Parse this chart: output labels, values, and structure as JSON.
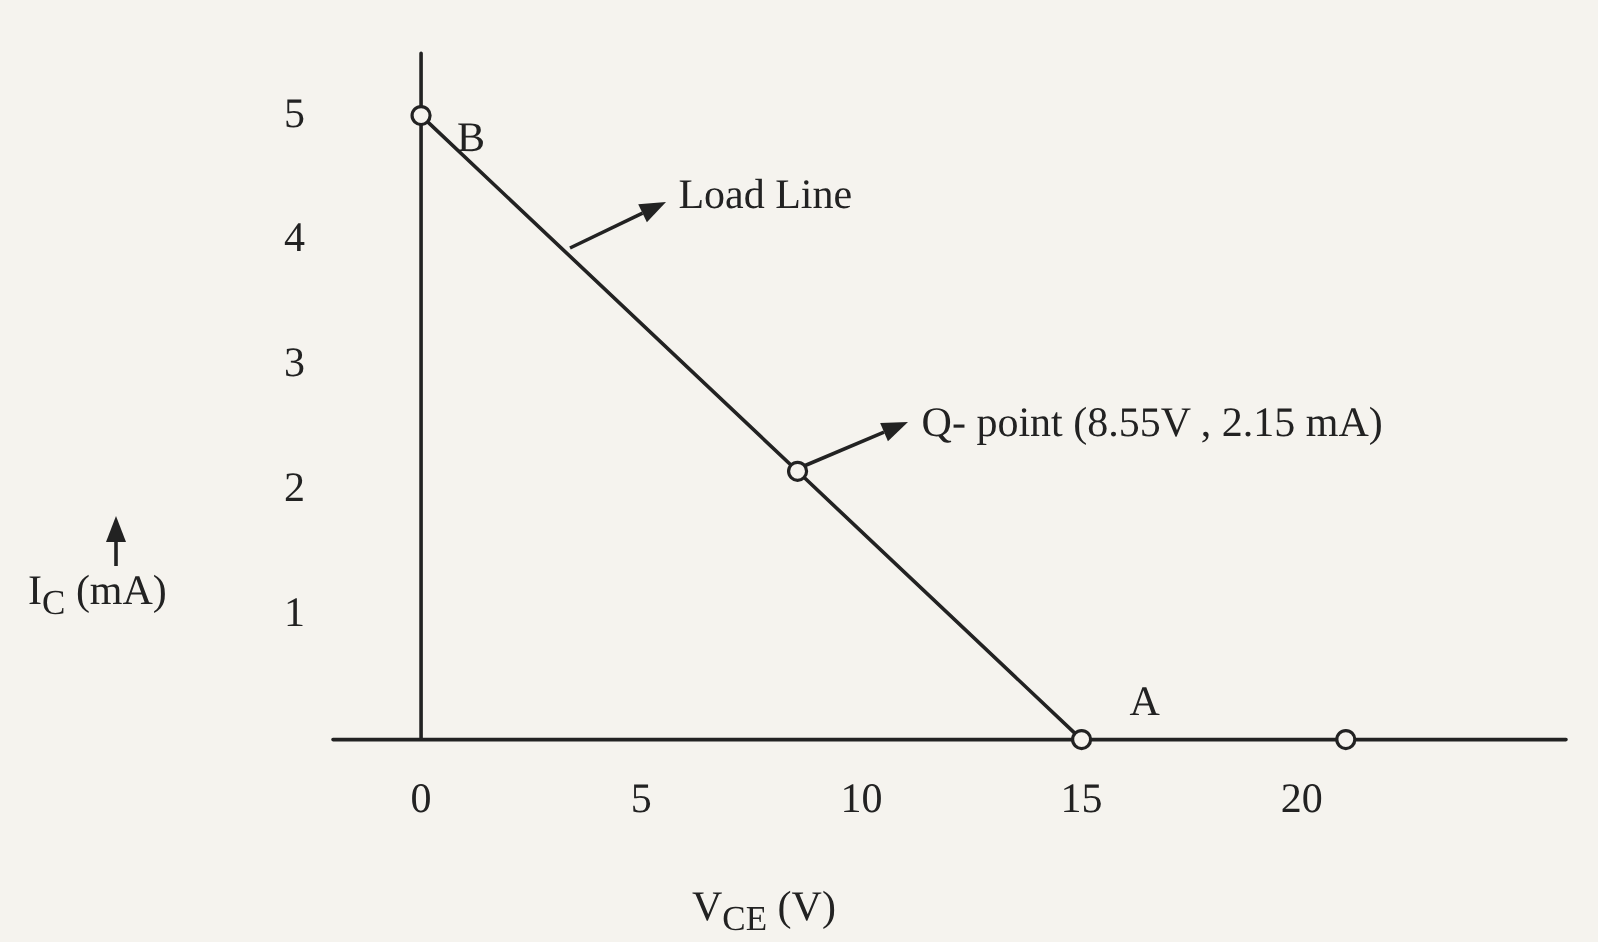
{
  "chart_data": {
    "type": "line",
    "xlabel": "V$_{CE}$ (V)",
    "ylabel": "I$_{C}$ (mA)",
    "series": [
      {
        "color": "#222222",
        "x": [
          0,
          8.55,
          15
        ],
        "values": [
          5,
          2.15,
          0
        ]
      },
      {
        "type": "scatter",
        "color": "#222222",
        "x": [
          21
        ],
        "values": [
          0
        ]
      }
    ],
    "xlim": [
      -2,
      26
    ],
    "xticks": [
      0,
      5,
      10,
      15,
      20
    ],
    "ylim": [
      0,
      5.5
    ],
    "yticks": [
      1,
      2,
      3,
      4,
      5
    ],
    "marker": "circle",
    "line_style": "solid",
    "annotations": [
      {
        "text": "B",
        "x": 0,
        "y": 5
      },
      {
        "text": "Load Line",
        "x": 3.3,
        "y": 3.9
      },
      {
        "text": "Q- point (8.55V , 2.15 mA)",
        "x": 8.55,
        "y": 2.15
      },
      {
        "text": "A",
        "x": 15,
        "y": 0
      }
    ]
  }
}
